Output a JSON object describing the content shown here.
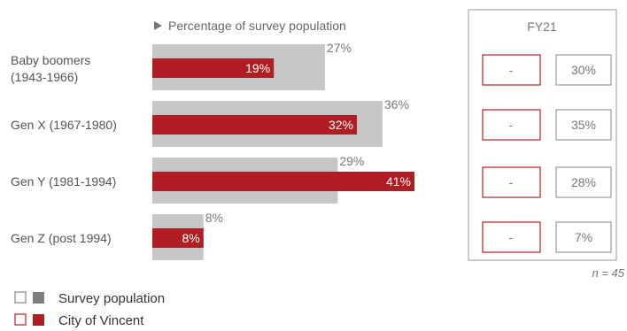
{
  "chart_data": {
    "type": "bar",
    "orientation": "horizontal",
    "caption": "Percentage of survey population",
    "categories": [
      "Baby boomers\n(1943-1966)",
      "Gen X (1967-1980)",
      "Gen Y (1981-1994)",
      "Gen Z (post 1994)"
    ],
    "series": [
      {
        "name": "Survey population",
        "values": [
          27,
          36,
          29,
          8
        ],
        "color": "#c6c6c6",
        "labels": [
          "27%",
          "36%",
          "29%",
          "8%"
        ]
      },
      {
        "name": "City of Vincent",
        "values": [
          19,
          32,
          41,
          8
        ],
        "color": "#b01e23",
        "labels": [
          "19%",
          "32%",
          "41%",
          "8%"
        ]
      }
    ],
    "xlim": [
      0,
      45
    ],
    "grid": false,
    "legend": "bottom-left"
  },
  "fy_panel": {
    "title": "FY21",
    "rows": [
      {
        "city": "-",
        "survey": "30%"
      },
      {
        "city": "-",
        "survey": "35%"
      },
      {
        "city": "-",
        "survey": "28%"
      },
      {
        "city": "-",
        "survey": "7%"
      }
    ],
    "note": "n = 45"
  },
  "legend_items": [
    {
      "label": "Survey population",
      "outline": "#888888",
      "fill": "#7f7f7f"
    },
    {
      "label": "City of Vincent",
      "outline": "#b01e23",
      "fill": "#b01e23"
    }
  ],
  "colors": {
    "grey_bar": "#c6c6c6",
    "red_bar": "#b01e23",
    "panel_border": "#aaaaaa"
  }
}
